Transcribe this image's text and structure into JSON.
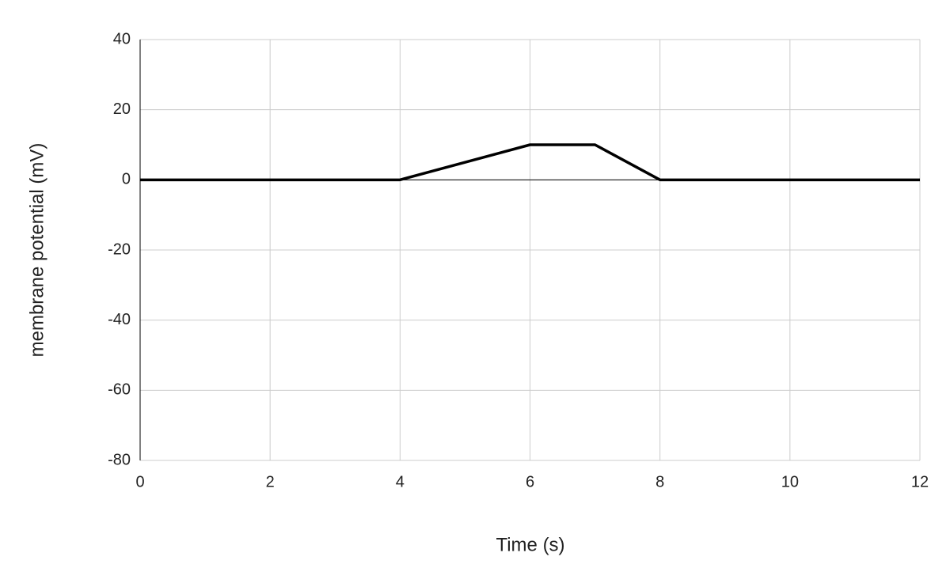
{
  "chart_data": {
    "type": "line",
    "x_label": "Time (s)",
    "y_label": "membrane potential (mV)",
    "x": [
      0,
      4,
      6,
      7,
      8,
      12
    ],
    "values": [
      0,
      0,
      10,
      10,
      0,
      0
    ],
    "color": "#000000",
    "xlim": [
      0,
      12
    ],
    "xticks": [
      0,
      2,
      4,
      6,
      8,
      10,
      12
    ],
    "ylim": [
      -80,
      40
    ],
    "yticks": [
      -80,
      -60,
      -40,
      -20,
      0,
      20,
      40
    ],
    "grid": true
  }
}
